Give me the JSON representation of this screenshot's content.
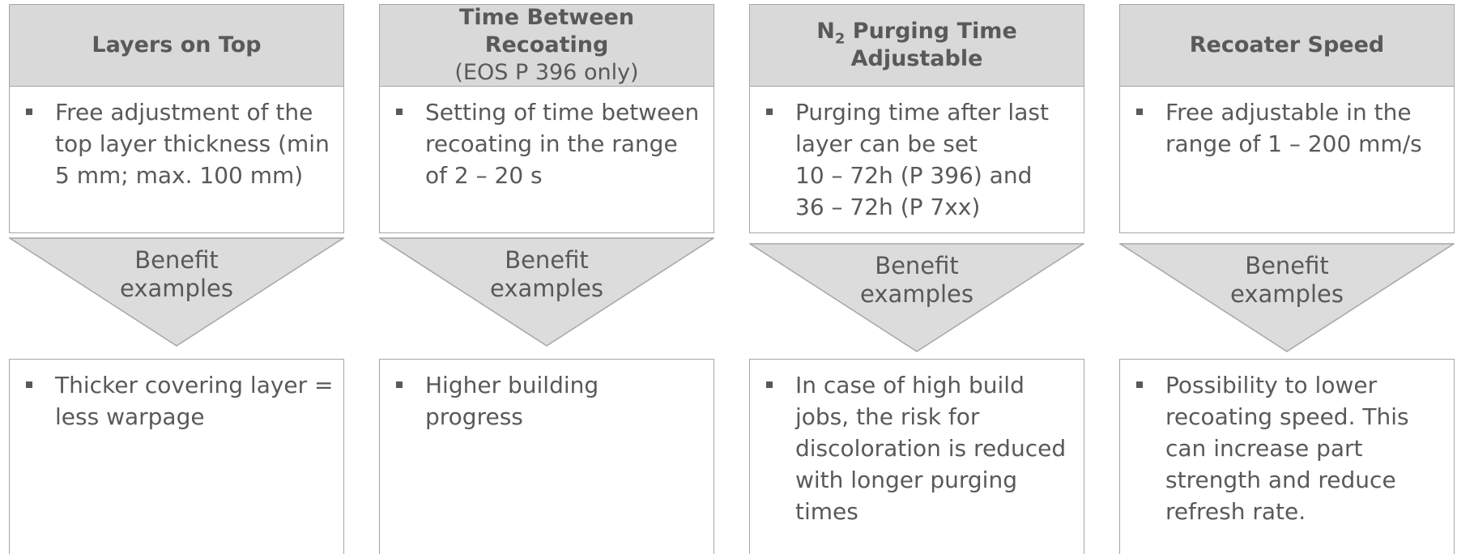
{
  "columns": [
    {
      "title": [
        {
          "text": "Layers on Top"
        }
      ],
      "description": [
        "Free adjustment of the",
        "top layer thickness (min",
        "5 mm;  max. 100 mm)"
      ],
      "arrow_label": [
        "Benefit",
        "examples"
      ],
      "benefit": [
        "Thicker covering layer =",
        "less warpage"
      ]
    },
    {
      "title": [
        {
          "text": "Time Between Recoating"
        }
      ],
      "subtitle": "(EOS P 396 only)",
      "description": [
        "Setting of time between",
        "recoating in the range",
        "of 2 – 20 s"
      ],
      "arrow_label": [
        "Benefit",
        "examples"
      ],
      "benefit": [
        "Higher building",
        "progress"
      ]
    },
    {
      "title": [
        {
          "text": "N"
        },
        {
          "text": "2",
          "sub": true
        },
        {
          "text": " Purging Time Adjustable"
        }
      ],
      "description": [
        "Purging time after last",
        "layer can be set",
        "10 – 72h (P 396) and",
        "36 – 72h (P 7xx)"
      ],
      "arrow_label": [
        "Benefit",
        "examples"
      ],
      "benefit": [
        "In case of high build",
        "jobs, the risk for",
        "discoloration is reduced",
        "with longer purging",
        "times"
      ]
    },
    {
      "title": [
        {
          "text": "Recoater Speed"
        }
      ],
      "description": [
        "Free adjustable in the",
        "range of 1 – 200 mm/s"
      ],
      "arrow_label": [
        "Benefit",
        "examples"
      ],
      "benefit": [
        "Possibility to lower",
        "recoating speed. This",
        "can increase part",
        "strength and reduce",
        "refresh rate."
      ]
    }
  ]
}
